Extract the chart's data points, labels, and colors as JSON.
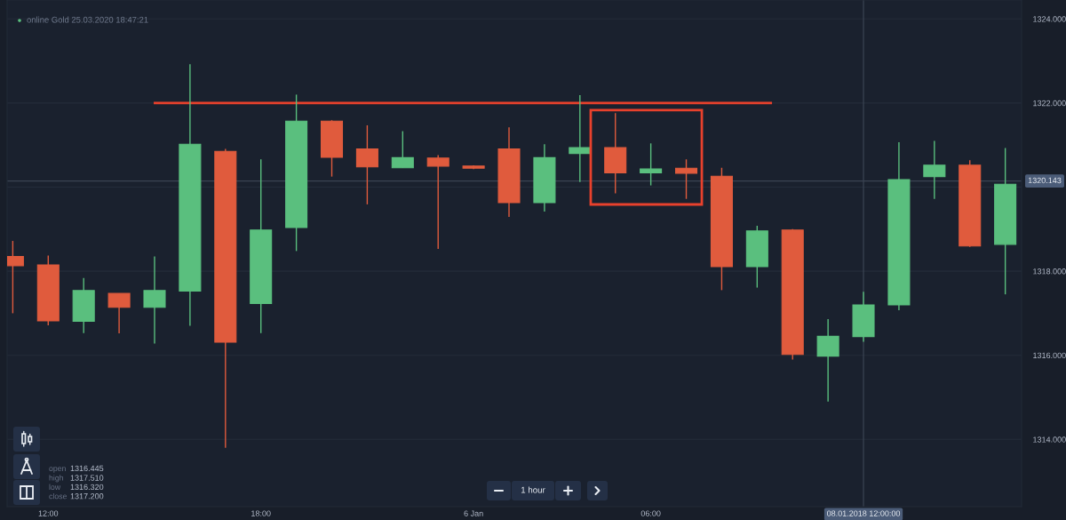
{
  "chart_data": {
    "type": "candlestick",
    "title": "online Gold 25.03.2020 18:47:21",
    "categories": [
      null,
      "12:00",
      null,
      null,
      null,
      null,
      null,
      "18:00",
      null,
      null,
      null,
      null,
      null,
      "6 Jan",
      null,
      null,
      null,
      null,
      "06:00",
      null,
      null,
      null,
      null,
      null,
      "08.01.2018 12:00:00",
      null,
      null,
      null,
      null
    ],
    "ohlc": [
      [
        1318.35,
        1318.72,
        1317.0,
        1318.13
      ],
      [
        1318.15,
        1318.37,
        1316.71,
        1316.82
      ],
      [
        1316.81,
        1317.84,
        1316.53,
        1317.54
      ],
      [
        1317.47,
        1317.47,
        1316.52,
        1317.14
      ],
      [
        1317.14,
        1318.35,
        1316.28,
        1317.54
      ],
      [
        1317.53,
        1322.92,
        1316.7,
        1321.02
      ],
      [
        1320.85,
        1320.91,
        1313.8,
        1316.31
      ],
      [
        1317.23,
        1320.66,
        1316.53,
        1318.98
      ],
      [
        1319.04,
        1322.2,
        1318.48,
        1321.57
      ],
      [
        1321.57,
        1321.59,
        1320.25,
        1320.71
      ],
      [
        1320.91,
        1321.47,
        1319.59,
        1320.48
      ],
      [
        1320.46,
        1321.33,
        1320.46,
        1320.7
      ],
      [
        1320.69,
        1320.76,
        1318.53,
        1320.5
      ],
      [
        1320.5,
        1320.52,
        1320.43,
        1320.45
      ],
      [
        1320.91,
        1321.42,
        1319.29,
        1319.63
      ],
      [
        1319.63,
        1321.02,
        1319.42,
        1320.7
      ],
      [
        1320.8,
        1322.19,
        1320.12,
        1320.94
      ],
      [
        1320.94,
        1321.76,
        1319.85,
        1320.34
      ],
      [
        1320.34,
        1321.04,
        1320.04,
        1320.43
      ],
      [
        1320.45,
        1320.66,
        1319.72,
        1320.33
      ],
      [
        1320.26,
        1320.46,
        1317.55,
        1318.11
      ],
      [
        1318.11,
        1319.08,
        1317.61,
        1318.96
      ],
      [
        1318.98,
        1319.0,
        1315.9,
        1316.02
      ],
      [
        1315.98,
        1316.86,
        1314.9,
        1316.45
      ],
      [
        1316.445,
        1317.51,
        1316.32,
        1317.2
      ],
      [
        1317.2,
        1321.07,
        1317.07,
        1320.18
      ],
      [
        1320.25,
        1321.1,
        1319.72,
        1320.52
      ],
      [
        1320.52,
        1320.64,
        1318.58,
        1318.6
      ],
      [
        1318.64,
        1320.93,
        1317.45,
        1320.07
      ]
    ],
    "colors": [
      "#e05b3d",
      "#e05b3d",
      "#5abf7e",
      "#e05b3d",
      "#5abf7e",
      "#5abf7e",
      "#e05b3d",
      "#5abf7e",
      "#5abf7e",
      "#e05b3d",
      "#e05b3d",
      "#5abf7e",
      "#e05b3d",
      "#e05b3d",
      "#e05b3d",
      "#5abf7e",
      "#5abf7e",
      "#e05b3d",
      "#5abf7e",
      "#e05b3d",
      "#e05b3d",
      "#5abf7e",
      "#e05b3d",
      "#5abf7e",
      "#5abf7e",
      "#5abf7e",
      "#5abf7e",
      "#e05b3d",
      "#5abf7e"
    ],
    "ylim": [
      1312.4,
      1324.45
    ],
    "yticks": [
      {
        "value": 1314,
        "label": "1314.000"
      },
      {
        "value": 1316,
        "label": "1316.000"
      },
      {
        "value": 1318,
        "label": "1318.000"
      },
      {
        "value": 1320,
        "label": null
      },
      {
        "value": 1322,
        "label": "1322.000"
      },
      {
        "value": 1324,
        "label": "1324.000"
      }
    ],
    "grid": "y",
    "ref_lines": [
      {
        "axis": "y",
        "value": 1322,
        "color": "#e8412c"
      },
      {
        "axis": "y",
        "value": 1320.143,
        "label": "1320.143",
        "color": "#3a4352"
      },
      {
        "axis": "x",
        "value": "08.01.2018 12:00:00",
        "color": "#3a4352"
      }
    ],
    "annotations": [
      "open 1316.445",
      "high 1317.510",
      "low 1316.320",
      "close 1317.200",
      "1 hour"
    ]
  }
}
